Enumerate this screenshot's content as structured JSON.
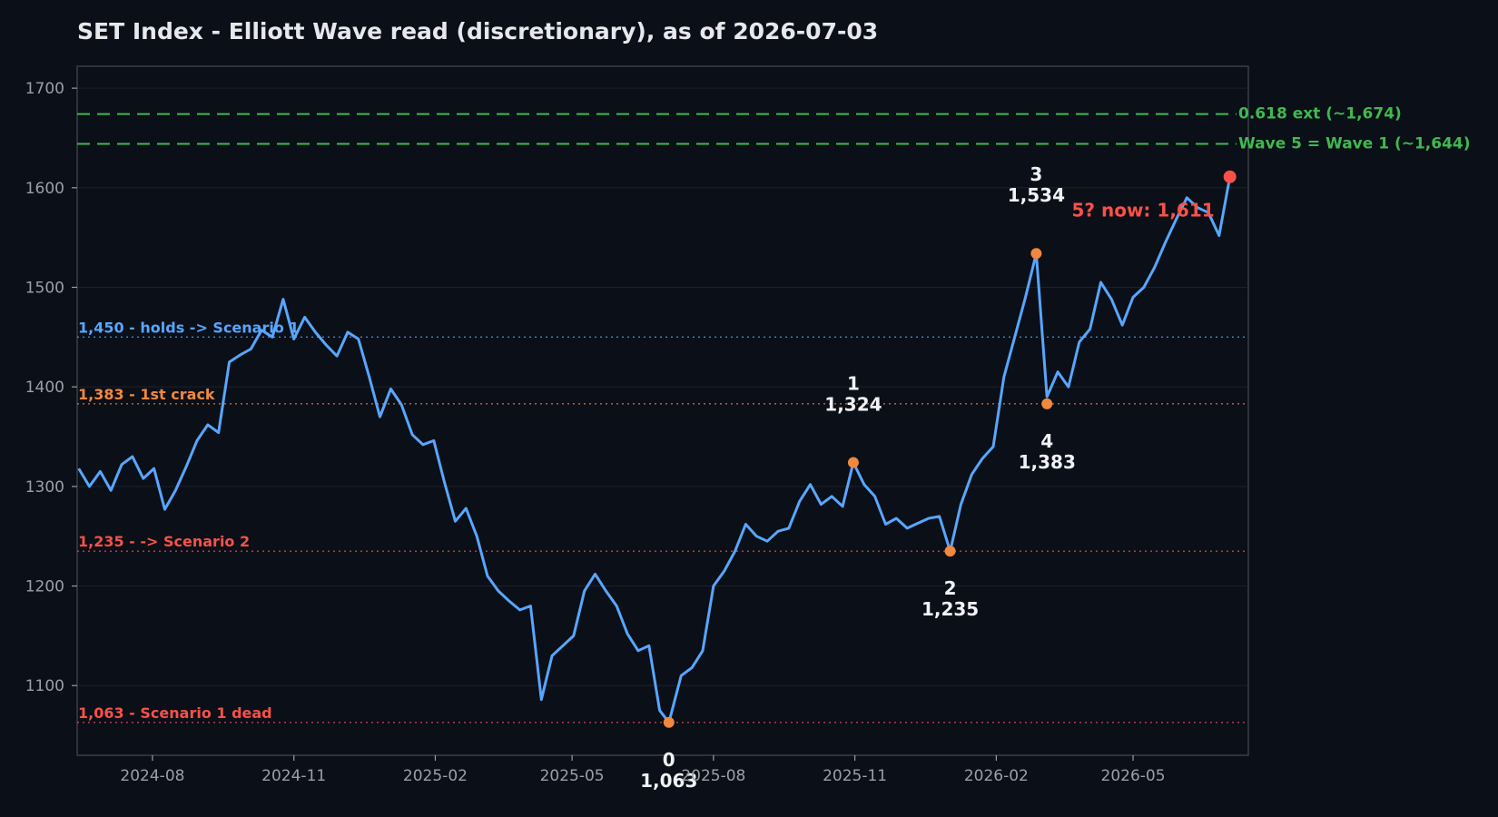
{
  "chart_data": {
    "type": "line",
    "title": "SET Index - Elliott Wave read (discretionary), as of 2026-07-03",
    "xlabel": "",
    "ylabel": "",
    "xlim": [
      "2024-06-13",
      "2026-07-15"
    ],
    "ylim": [
      1030,
      1722
    ],
    "y_ticks": [
      1100,
      1200,
      1300,
      1400,
      1500,
      1600,
      1700
    ],
    "x_ticks": [
      {
        "date": "2024-08-01",
        "label": "2024-08"
      },
      {
        "date": "2024-11-01",
        "label": "2024-11"
      },
      {
        "date": "2025-02-01",
        "label": "2025-02"
      },
      {
        "date": "2025-05-01",
        "label": "2025-05"
      },
      {
        "date": "2025-08-01",
        "label": "2025-08"
      },
      {
        "date": "2025-11-01",
        "label": "2025-11"
      },
      {
        "date": "2026-02-01",
        "label": "2026-02"
      },
      {
        "date": "2026-05-01",
        "label": "2026-05"
      }
    ],
    "grid": true,
    "series": [
      {
        "color": "#58a6ff",
        "points": [
          [
            "2024-06-14",
            1318
          ],
          [
            "2024-06-21",
            1300
          ],
          [
            "2024-06-28",
            1315
          ],
          [
            "2024-07-05",
            1296
          ],
          [
            "2024-07-12",
            1322
          ],
          [
            "2024-07-19",
            1330
          ],
          [
            "2024-07-26",
            1308
          ],
          [
            "2024-08-02",
            1318
          ],
          [
            "2024-08-09",
            1277
          ],
          [
            "2024-08-16",
            1296
          ],
          [
            "2024-08-23",
            1320
          ],
          [
            "2024-08-30",
            1346
          ],
          [
            "2024-09-06",
            1362
          ],
          [
            "2024-09-13",
            1354
          ],
          [
            "2024-09-20",
            1425
          ],
          [
            "2024-09-27",
            1432
          ],
          [
            "2024-10-04",
            1438
          ],
          [
            "2024-10-11",
            1457
          ],
          [
            "2024-10-18",
            1450
          ],
          [
            "2024-10-25",
            1488
          ],
          [
            "2024-11-01",
            1448
          ],
          [
            "2024-11-08",
            1470
          ],
          [
            "2024-11-15",
            1455
          ],
          [
            "2024-11-22",
            1442
          ],
          [
            "2024-11-29",
            1431
          ],
          [
            "2024-12-06",
            1455
          ],
          [
            "2024-12-13",
            1448
          ],
          [
            "2024-12-20",
            1410
          ],
          [
            "2024-12-27",
            1370
          ],
          [
            "2025-01-03",
            1398
          ],
          [
            "2025-01-10",
            1382
          ],
          [
            "2025-01-17",
            1352
          ],
          [
            "2025-01-24",
            1342
          ],
          [
            "2025-01-31",
            1346
          ],
          [
            "2025-02-07",
            1304
          ],
          [
            "2025-02-14",
            1265
          ],
          [
            "2025-02-21",
            1278
          ],
          [
            "2025-02-28",
            1250
          ],
          [
            "2025-03-07",
            1210
          ],
          [
            "2025-03-14",
            1195
          ],
          [
            "2025-03-21",
            1185
          ],
          [
            "2025-03-28",
            1176
          ],
          [
            "2025-04-04",
            1180
          ],
          [
            "2025-04-11",
            1086
          ],
          [
            "2025-04-18",
            1130
          ],
          [
            "2025-04-25",
            1140
          ],
          [
            "2025-05-02",
            1150
          ],
          [
            "2025-05-09",
            1195
          ],
          [
            "2025-05-16",
            1212
          ],
          [
            "2025-05-23",
            1195
          ],
          [
            "2025-05-30",
            1180
          ],
          [
            "2025-06-06",
            1152
          ],
          [
            "2025-06-13",
            1135
          ],
          [
            "2025-06-20",
            1140
          ],
          [
            "2025-06-27",
            1075
          ],
          [
            "2025-07-03",
            1063
          ],
          [
            "2025-07-11",
            1110
          ],
          [
            "2025-07-18",
            1118
          ],
          [
            "2025-07-25",
            1135
          ],
          [
            "2025-08-01",
            1200
          ],
          [
            "2025-08-08",
            1215
          ],
          [
            "2025-08-15",
            1235
          ],
          [
            "2025-08-22",
            1262
          ],
          [
            "2025-08-29",
            1250
          ],
          [
            "2025-09-05",
            1245
          ],
          [
            "2025-09-12",
            1255
          ],
          [
            "2025-09-19",
            1258
          ],
          [
            "2025-09-26",
            1285
          ],
          [
            "2025-10-03",
            1302
          ],
          [
            "2025-10-10",
            1282
          ],
          [
            "2025-10-17",
            1290
          ],
          [
            "2025-10-24",
            1280
          ],
          [
            "2025-10-31",
            1324
          ],
          [
            "2025-11-07",
            1302
          ],
          [
            "2025-11-14",
            1290
          ],
          [
            "2025-11-21",
            1262
          ],
          [
            "2025-11-28",
            1268
          ],
          [
            "2025-12-05",
            1258
          ],
          [
            "2025-12-12",
            1263
          ],
          [
            "2025-12-19",
            1268
          ],
          [
            "2025-12-26",
            1270
          ],
          [
            "2026-01-02",
            1235
          ],
          [
            "2026-01-09",
            1282
          ],
          [
            "2026-01-16",
            1312
          ],
          [
            "2026-01-23",
            1328
          ],
          [
            "2026-01-30",
            1340
          ],
          [
            "2026-02-06",
            1410
          ],
          [
            "2026-02-13",
            1450
          ],
          [
            "2026-02-20",
            1490
          ],
          [
            "2026-02-27",
            1534
          ],
          [
            "2026-03-06",
            1390
          ],
          [
            "2026-03-13",
            1415
          ],
          [
            "2026-03-20",
            1400
          ],
          [
            "2026-03-27",
            1445
          ],
          [
            "2026-04-03",
            1458
          ],
          [
            "2026-04-10",
            1505
          ],
          [
            "2026-04-17",
            1488
          ],
          [
            "2026-04-24",
            1462
          ],
          [
            "2026-05-01",
            1490
          ],
          [
            "2026-05-08",
            1500
          ],
          [
            "2026-05-15",
            1520
          ],
          [
            "2026-05-22",
            1545
          ],
          [
            "2026-05-29",
            1568
          ],
          [
            "2026-06-05",
            1590
          ],
          [
            "2026-06-12",
            1580
          ],
          [
            "2026-06-19",
            1575
          ],
          [
            "2026-06-26",
            1552
          ],
          [
            "2026-07-03",
            1611
          ]
        ]
      }
    ],
    "levels": [
      {
        "value": 1450,
        "label": "1,450 - holds -> Scenario 1",
        "color": "#58a6ff",
        "style": "dotted"
      },
      {
        "value": 1383,
        "label": "1,383 - 1st crack",
        "color": "#f0883e",
        "style": "dotted"
      },
      {
        "value": 1235,
        "label": "1,235 - -> Scenario 2",
        "color": "#f85149",
        "style": "dotted"
      },
      {
        "value": 1063,
        "label": "1,063 - Scenario 1 dead",
        "color": "#f85149",
        "style": "dotted"
      }
    ],
    "targets": [
      {
        "value": 1674,
        "label": "0.618 ext (~1,674)",
        "color": "#3fb950",
        "style": "dashed"
      },
      {
        "value": 1644,
        "label": "Wave 5 = Wave 1 (~1,644)",
        "color": "#3fb950",
        "style": "dashed"
      }
    ],
    "waves": [
      {
        "wave": "0",
        "value_label": "1,063",
        "date": "2025-07-03",
        "value": 1063,
        "label_pos": "below"
      },
      {
        "wave": "1",
        "value_label": "1,324",
        "date": "2025-10-31",
        "value": 1324,
        "label_pos": "above"
      },
      {
        "wave": "2",
        "value_label": "1,235",
        "date": "2026-01-02",
        "value": 1235,
        "label_pos": "below"
      },
      {
        "wave": "3",
        "value_label": "1,534",
        "date": "2026-02-27",
        "value": 1534,
        "label_pos": "above"
      },
      {
        "wave": "4",
        "value_label": "1,383",
        "date": "2026-03-06",
        "value": 1383,
        "label_pos": "below"
      }
    ],
    "wave_point_color": "#f0883e",
    "current": {
      "date": "2026-07-03",
      "value": 1611,
      "label": "5? now: 1,611",
      "color": "#f85149"
    }
  }
}
